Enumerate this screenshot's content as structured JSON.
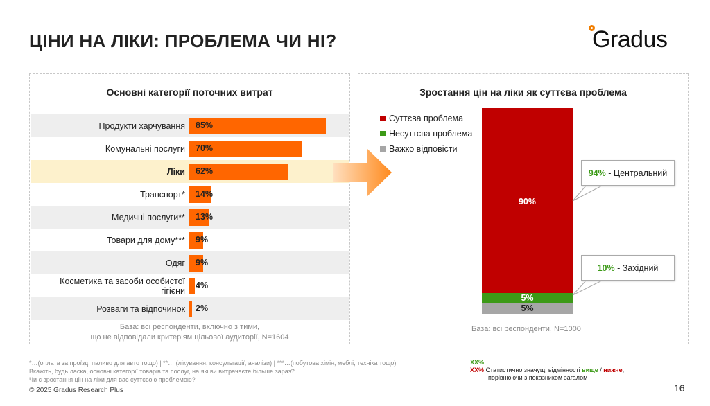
{
  "title": "ЦІНИ НА ЛІКИ: ПРОБЛЕМА ЧИ НІ?",
  "logo": "Gradus",
  "left": {
    "title": "Основні категорії поточних витрат",
    "rows": [
      {
        "label": "Продукти харчування",
        "value": 85,
        "text": "85%"
      },
      {
        "label": "Комунальні послуги",
        "value": 70,
        "text": "70%"
      },
      {
        "label": "Ліки",
        "value": 62,
        "text": "62%"
      },
      {
        "label": "Транспорт*",
        "value": 14,
        "text": "14%"
      },
      {
        "label": "Медичні послуги**",
        "value": 13,
        "text": "13%"
      },
      {
        "label": "Товари для дому***",
        "value": 9,
        "text": "9%"
      },
      {
        "label": "Одяг",
        "value": 9,
        "text": "9%"
      },
      {
        "label": "Косметика та засоби особистої гігієни",
        "value": 4,
        "text": "4%"
      },
      {
        "label": "Розваги та відпочинок",
        "value": 2,
        "text": "2%"
      }
    ],
    "base1": "База: всі респонденти, включно з тими,",
    "base2": "що не відповідали критеріям цільової аудиторії, N=1604"
  },
  "right": {
    "title": "Зростання цін на ліки як суттєва проблема",
    "legend": [
      {
        "label": "Суттєва проблема",
        "color": "#c00000"
      },
      {
        "label": "Несуттєва проблема",
        "color": "#3c9a17"
      },
      {
        "label": "Важко відповісти",
        "color": "#a6a6a6"
      }
    ],
    "segments": [
      {
        "value": 90,
        "text": "90%"
      },
      {
        "value": 5,
        "text": "5%"
      },
      {
        "value": 5,
        "text": "5%"
      }
    ],
    "callouts": [
      {
        "value": "94%",
        "label": " - Центральний"
      },
      {
        "value": "10%",
        "label": " - Західний"
      }
    ],
    "base": "База: всі респонденти, N=1000"
  },
  "footnotes": [
    "*…(оплата за проїзд, паливо для авто тощо) | **… (лікування, консультації, аналізи) | ***…(побутова хімія, меблі, техніка тощо)",
    "Вкажіть, будь ласка, основні категорії товарів та послуг, на які ви витрачаєте більше зараз?",
    "Чи є зростання цін на ліки для вас суттєвою проблемою?"
  ],
  "copyright": "© 2025 Gradus Research Plus",
  "significance": {
    "marker": "XX%",
    "text1": "Статистично значущі відмінності ",
    "higher": "вище",
    "sep": " / ",
    "lower": "нижче",
    "text2": ",",
    "text3": "порівнюючи з показником загалом"
  },
  "page": "16"
}
